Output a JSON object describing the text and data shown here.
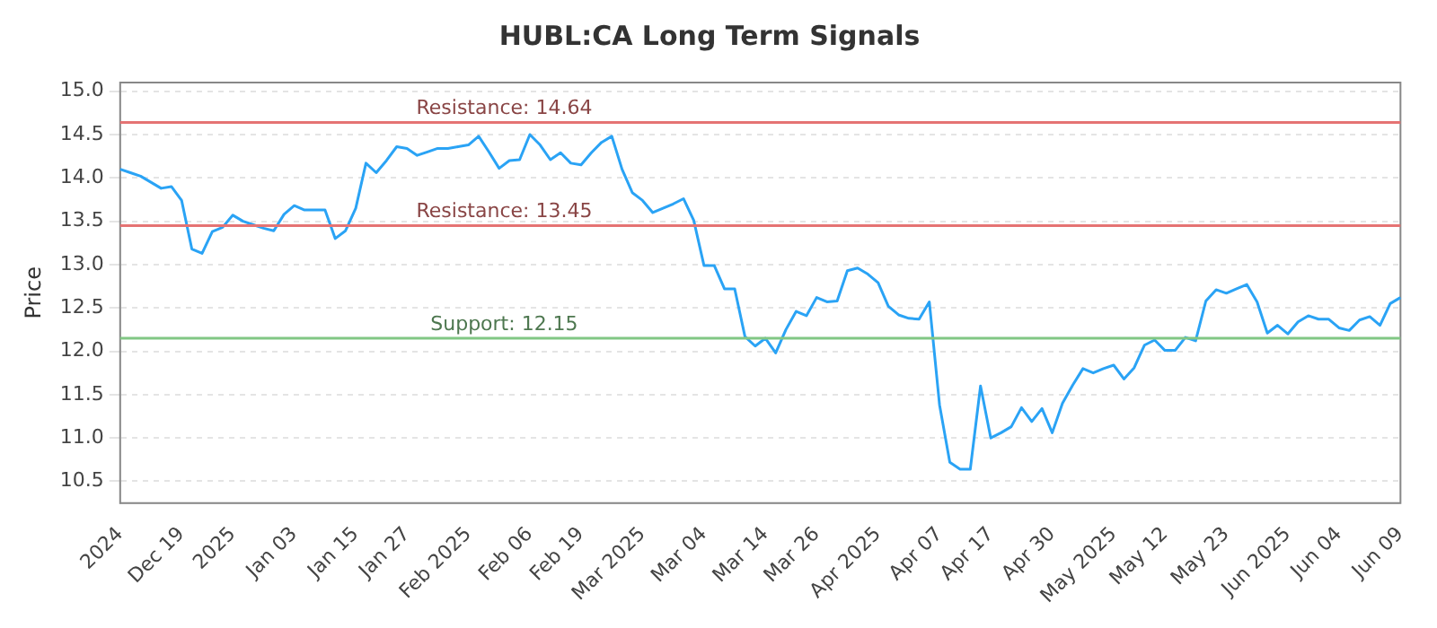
{
  "chart_data": {
    "type": "line",
    "title": "HUBL:CA Long Term Signals",
    "ylabel": "Price",
    "categories": [
      "2024",
      null,
      null,
      null,
      null,
      null,
      "Dec 19",
      null,
      null,
      null,
      null,
      "2025",
      null,
      null,
      null,
      null,
      null,
      "Jan 03",
      null,
      null,
      null,
      null,
      null,
      "Jan 15",
      null,
      null,
      null,
      null,
      "Jan 27",
      null,
      null,
      null,
      null,
      null,
      "Feb 2025",
      null,
      null,
      null,
      null,
      null,
      "Feb 06",
      null,
      null,
      null,
      null,
      "Feb 19",
      null,
      null,
      null,
      null,
      null,
      "Mar 2025",
      null,
      null,
      null,
      null,
      null,
      "Mar 04",
      null,
      null,
      null,
      null,
      null,
      "Mar 14",
      null,
      null,
      null,
      null,
      "Mar 26",
      null,
      null,
      null,
      null,
      null,
      "Apr 2025",
      null,
      null,
      null,
      null,
      null,
      "Apr 07",
      null,
      null,
      null,
      null,
      "Apr 17",
      null,
      null,
      null,
      null,
      null,
      "Apr 30",
      null,
      null,
      null,
      null,
      null,
      "May 2025",
      null,
      null,
      null,
      null,
      "May 12",
      null,
      null,
      null,
      null,
      null,
      "May 23",
      null,
      null,
      null,
      null,
      null,
      "Jun 2025",
      null,
      null,
      null,
      null,
      "Jun 04",
      null,
      null,
      null,
      null,
      null,
      "Jun 09"
    ],
    "series": [
      {
        "color": "#2aa3f5",
        "values": [
          14.1,
          14.06,
          14.02,
          13.95,
          13.88,
          13.9,
          13.74,
          13.18,
          13.13,
          13.38,
          13.43,
          13.57,
          13.5,
          13.46,
          13.42,
          13.39,
          13.58,
          13.68,
          13.63,
          13.63,
          13.63,
          13.3,
          13.39,
          13.65,
          14.17,
          14.06,
          14.2,
          14.36,
          14.34,
          14.26,
          14.3,
          14.34,
          14.34,
          14.36,
          14.38,
          14.48,
          14.3,
          14.11,
          14.2,
          14.21,
          14.5,
          14.38,
          14.21,
          14.29,
          14.17,
          14.15,
          14.29,
          14.41,
          14.48,
          14.1,
          13.83,
          13.74,
          13.6,
          13.65,
          13.7,
          13.76,
          13.51,
          12.99,
          12.99,
          12.72,
          12.72,
          12.17,
          12.06,
          12.15,
          11.98,
          12.25,
          12.46,
          12.41,
          12.62,
          12.57,
          12.58,
          12.93,
          12.96,
          12.89,
          12.79,
          12.52,
          12.42,
          12.38,
          12.37,
          12.57,
          11.38,
          10.72,
          10.64,
          10.64,
          11.6,
          11.0,
          11.06,
          11.13,
          11.35,
          11.19,
          11.34,
          11.06,
          11.4,
          11.61,
          11.8,
          11.75,
          11.8,
          11.84,
          11.68,
          11.81,
          12.07,
          12.13,
          12.01,
          12.01,
          12.16,
          12.12,
          12.58,
          12.71,
          12.67,
          12.72,
          12.77,
          12.57,
          12.21,
          12.3,
          12.2,
          12.34,
          12.41,
          12.37,
          12.37,
          12.27,
          12.24,
          12.36,
          12.4,
          12.3,
          12.55,
          12.62
        ]
      }
    ],
    "ylim": [
      10.25,
      15.1
    ],
    "yticks": [
      {
        "value": 10.5,
        "label": "10.5"
      },
      {
        "value": 11,
        "label": "11.0"
      },
      {
        "value": 11.5,
        "label": "11.5"
      },
      {
        "value": 12,
        "label": "12.0"
      },
      {
        "value": 12.5,
        "label": "12.5"
      },
      {
        "value": 13,
        "label": "13.0"
      },
      {
        "value": 13.5,
        "label": "13.5"
      },
      {
        "value": 14,
        "label": "14.0"
      },
      {
        "value": 14.5,
        "label": "14.5"
      },
      {
        "value": 15,
        "label": "15.0"
      }
    ],
    "grid": "y",
    "legend": false,
    "marker": "none",
    "line_style": "solid",
    "ref_lines": [
      {
        "axis": "y",
        "value": 14.64,
        "label": "Resistance: 14.64",
        "color": "#e57373"
      },
      {
        "axis": "y",
        "value": 13.45,
        "label": "Resistance: 13.45",
        "color": "#e57373"
      },
      {
        "axis": "y",
        "value": 12.15,
        "label": "Support: 12.15",
        "color": "#81c784"
      }
    ]
  }
}
